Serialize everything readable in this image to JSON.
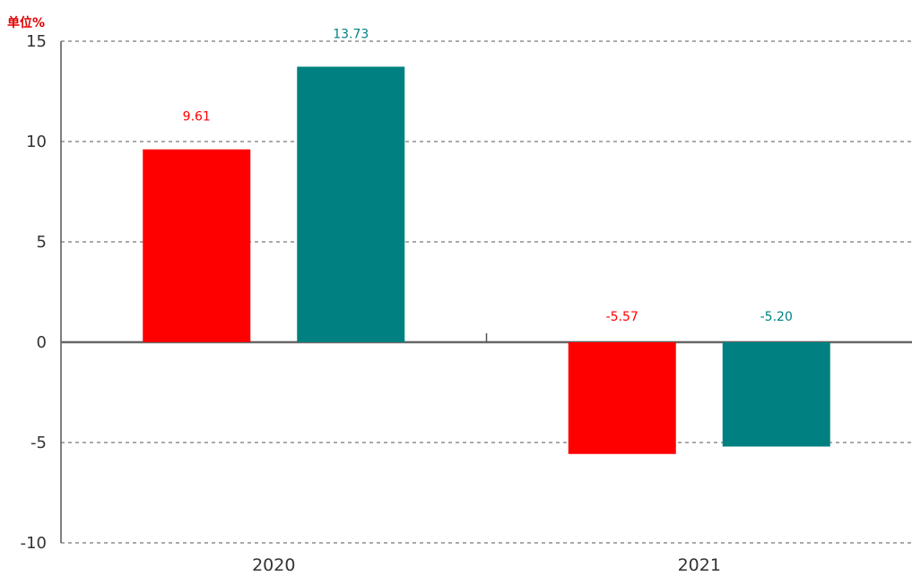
{
  "chart_data": {
    "type": "bar",
    "unit_label": "单位%",
    "categories": [
      "2020",
      "2021"
    ],
    "series": [
      {
        "values": [
          9.61,
          -5.57
        ],
        "labels": [
          "9.61",
          "-5.57"
        ],
        "color": "#ff0000"
      },
      {
        "values": [
          13.73,
          -5.2
        ],
        "labels": [
          "13.73",
          "-5.20"
        ],
        "color": "#008080"
      }
    ],
    "ylim": [
      -10,
      15
    ],
    "yticks": [
      15,
      10,
      5,
      0,
      -5,
      -10
    ],
    "grid": true,
    "legend": "none"
  }
}
